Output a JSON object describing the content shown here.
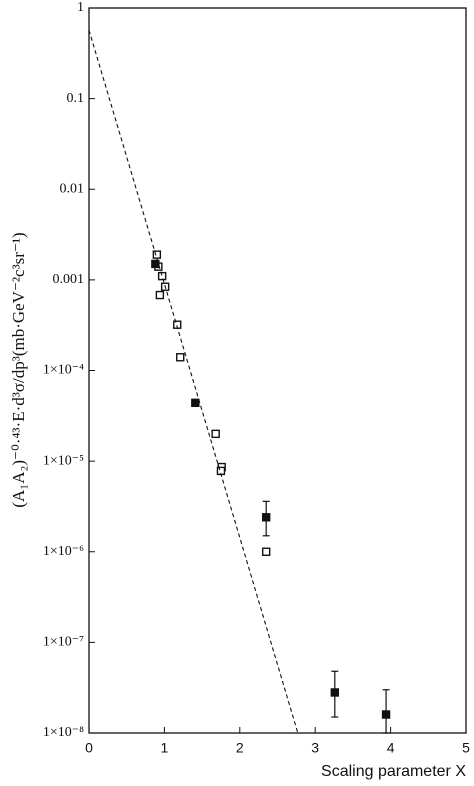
{
  "chart_data": {
    "type": "scatter",
    "y_label": "(A₁A₂)⁻⁰·⁴³·E·d³σ/dp³(mb·GeV⁻²c³sr⁻¹)",
    "x_label": "Scaling parameter X",
    "xlim": [
      0,
      5
    ],
    "xticks": [
      0,
      1,
      2,
      3,
      4,
      5
    ],
    "ylim": [
      1e-08,
      1
    ],
    "log_y": true,
    "yticks": [
      1,
      0.1,
      0.01,
      0.001,
      {
        "value": 0.0001,
        "label": "1×10⁻⁴"
      },
      {
        "value": 1e-05,
        "label": "1×10⁻⁵"
      },
      {
        "value": 1e-06,
        "label": "1×10⁻⁶"
      },
      {
        "value": 1e-07,
        "label": "1×10⁻⁷"
      },
      {
        "value": 1e-08,
        "label": "1×10⁻⁸"
      }
    ],
    "series": [
      {
        "marker": "open",
        "color": "#111111",
        "x": [
          0.9,
          0.92,
          0.97,
          1.01,
          0.94,
          1.17,
          1.21,
          1.68,
          1.76,
          1.75,
          2.35
        ],
        "values": [
          0.0019,
          0.0014,
          0.0011,
          0.00084,
          0.00068,
          0.00032,
          0.00014,
          2e-05,
          8.6e-06,
          7.8e-06,
          1e-06
        ]
      },
      {
        "marker": "filled",
        "color": "#111111",
        "x": [
          0.88,
          1.41,
          2.35,
          3.26,
          3.94
        ],
        "values": [
          0.0015,
          4.4e-05,
          2.4e-06,
          2.8e-08,
          1.6e-08
        ],
        "errors": [
          null,
          null,
          [
            1.5e-06,
            3.6e-06
          ],
          [
            1.5e-08,
            4.8e-08
          ],
          [
            1e-08,
            3e-08
          ]
        ]
      },
      {
        "type": "line",
        "style": "dashed",
        "color": "#111111",
        "x": [
          0,
          2.77
        ],
        "values": [
          0.57,
          1e-08
        ]
      }
    ]
  }
}
